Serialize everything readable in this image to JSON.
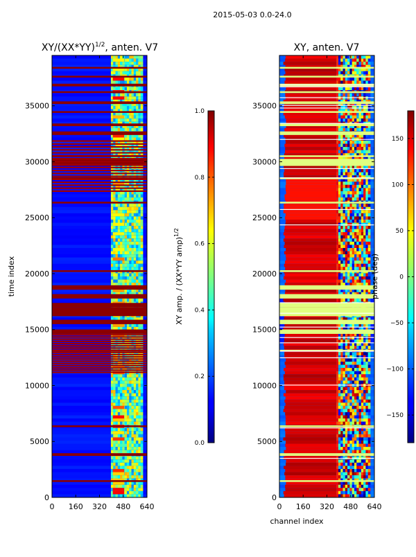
{
  "suptitle": "2015-05-03 0.0-24.0",
  "chart_data": [
    {
      "type": "heatmap",
      "title_main": "XY/(XX*YY)",
      "title_sup": "1/2",
      "title_tail": ", anten. V7",
      "xlabel": "",
      "ylabel": "time index",
      "xlim": [
        0,
        640
      ],
      "ylim": [
        0,
        39500
      ],
      "xticks": [
        0,
        160,
        320,
        480,
        640
      ],
      "yticks": [
        0,
        5000,
        10000,
        15000,
        20000,
        25000,
        30000,
        35000
      ],
      "colormap": "jet",
      "colorbar": {
        "label_main": "XY amp. / (XX*YY amp)",
        "label_sup": "1/2",
        "range": [
          0.0,
          1.0
        ],
        "ticks": [
          "0.0",
          "0.2",
          "0.4",
          "0.6",
          "0.8",
          "1.0"
        ],
        "tick_values": [
          0.0,
          0.2,
          0.4,
          0.6,
          0.8,
          1.0
        ]
      }
    },
    {
      "type": "heatmap",
      "title_main": "XY, anten. V7",
      "xlabel": "channel index",
      "ylabel": "",
      "xlim": [
        0,
        640
      ],
      "ylim": [
        0,
        39500
      ],
      "xticks": [
        0,
        160,
        320,
        480,
        640
      ],
      "yticks": [
        0,
        5000,
        10000,
        15000,
        20000,
        25000,
        30000,
        35000
      ],
      "colormap": "jet",
      "colorbar": {
        "label_main": "phase (deg)",
        "range": [
          -180,
          180
        ],
        "ticks": [
          "−150",
          "−100",
          "−50",
          "0",
          "50",
          "100",
          "150"
        ],
        "tick_values": [
          -150,
          -100,
          -50,
          0,
          50,
          100,
          150
        ]
      }
    }
  ]
}
